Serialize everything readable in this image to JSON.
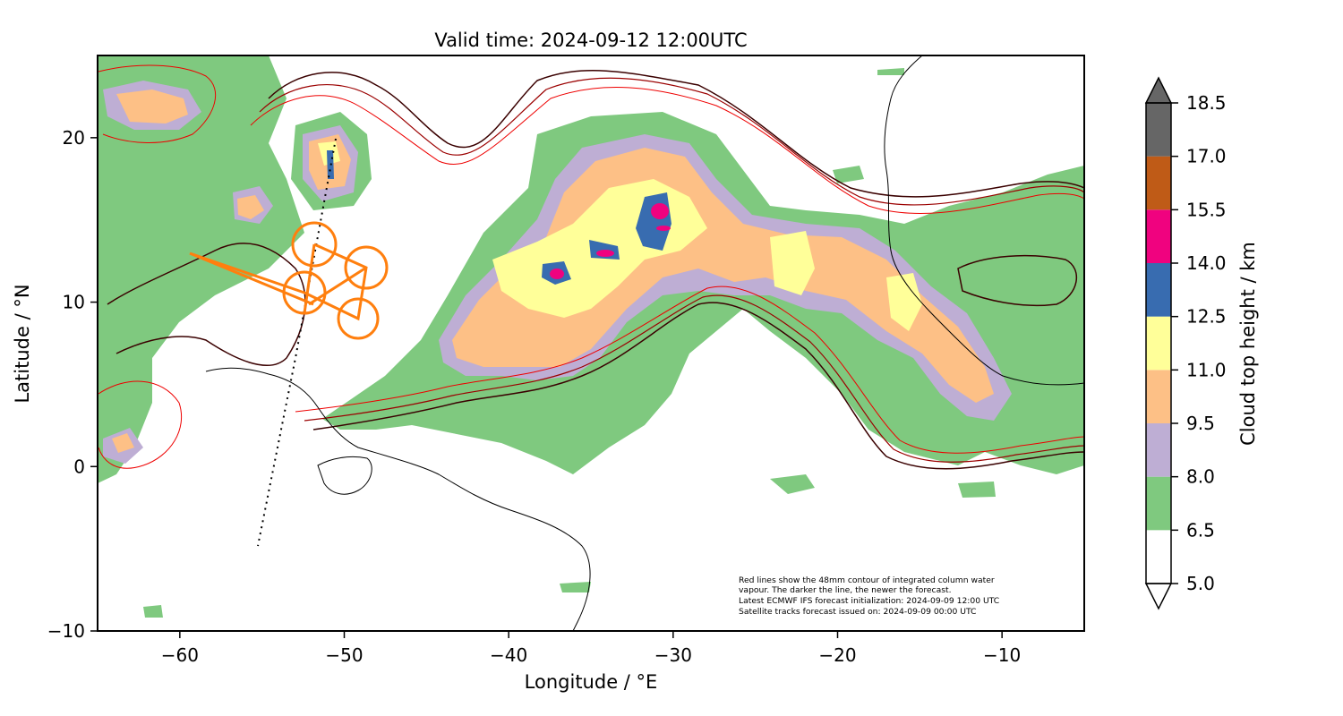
{
  "title": "Valid time: 2024-09-12 12:00UTC",
  "map": {
    "xlabel": "Longitude / °E",
    "ylabel": "Latitude / °N",
    "xlim": [
      -65,
      -5
    ],
    "ylim": [
      -10,
      25
    ],
    "x_ticks": [
      -60,
      -50,
      -40,
      -30,
      -20,
      -10
    ],
    "y_ticks": [
      -10,
      0,
      10,
      20
    ],
    "x_tick_labels": [
      "−60",
      "−50",
      "−40",
      "−30",
      "−20",
      "−10"
    ],
    "y_tick_labels": [
      "−10",
      "0",
      "10",
      "20"
    ]
  },
  "colorbar": {
    "label": "Cloud top height / km",
    "ticks": [
      5.0,
      6.5,
      8.0,
      9.5,
      11.0,
      12.5,
      14.0,
      15.5,
      17.0,
      18.5
    ],
    "tick_labels": [
      "5.0",
      "6.5",
      "8.0",
      "9.5",
      "11.0",
      "12.5",
      "14.0",
      "15.5",
      "17.0",
      "18.5"
    ],
    "colors": [
      "#ffffff",
      "#7fc97f",
      "#beaed4",
      "#fdc086",
      "#ffff99",
      "#386cb0",
      "#f0027f",
      "#bf5b17",
      "#666666"
    ],
    "extend": "both"
  },
  "notes": [
    "Red lines show the 48mm contour of integrated column water",
    "vapour. The darker the line, the newer the forecast.",
    "Latest ECMWF IFS forecast initialization: 2024-09-09 12:00 UTC",
    "Satellite tracks forecast issued on: 2024-09-09 00:00 UTC"
  ],
  "colors": {
    "flight_track": "#ff7f0e",
    "coastline": "#000000",
    "iwv_newest": "#3a0000",
    "iwv_oldest": "#ee0000"
  }
}
